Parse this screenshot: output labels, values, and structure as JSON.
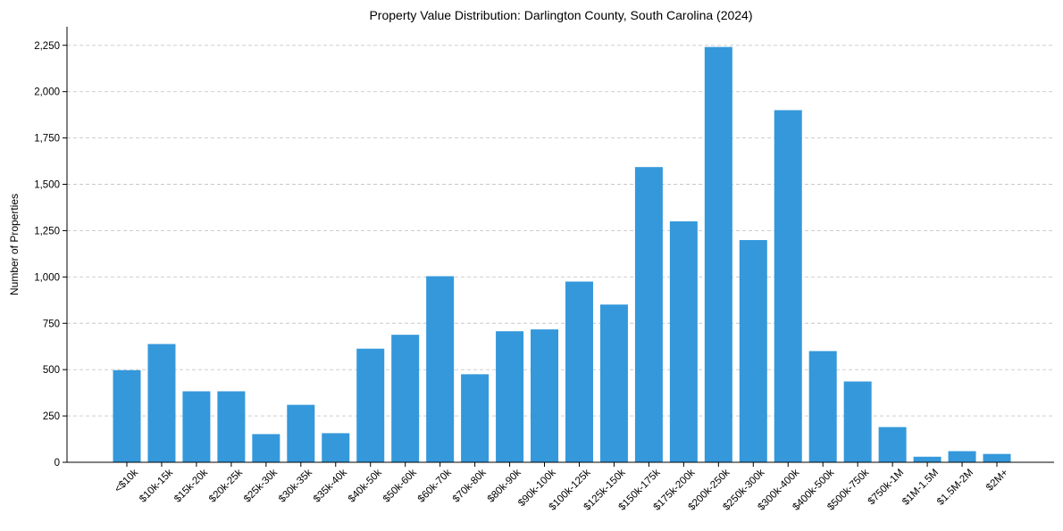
{
  "chart_data": {
    "type": "bar",
    "title": "Property Value Distribution: Darlington County, South Carolina (2024)",
    "xlabel": "",
    "ylabel": "Number of Properties",
    "categories": [
      "<$10k",
      "$10k-15k",
      "$15k-20k",
      "$20k-25k",
      "$25k-30k",
      "$30k-35k",
      "$35k-40k",
      "$40k-50k",
      "$50k-60k",
      "$60k-70k",
      "$70k-80k",
      "$80k-90k",
      "$90k-100k",
      "$100k-125k",
      "$125k-150k",
      "$150k-175k",
      "$175k-200k",
      "$200k-250k",
      "$250k-300k",
      "$300k-400k",
      "$400k-500k",
      "$500k-750k",
      "$750k-1M",
      "$1M-1.5M",
      "$1.5M-2M",
      "$2M+"
    ],
    "values": [
      497,
      638,
      383,
      383,
      152,
      310,
      157,
      613,
      688,
      1004,
      475,
      707,
      717,
      975,
      851,
      1593,
      1300,
      2241,
      1199,
      1900,
      600,
      436,
      190,
      30,
      60,
      45
    ],
    "ylim": [
      0,
      2350
    ],
    "yticks": [
      0,
      250,
      500,
      750,
      1000,
      1250,
      1500,
      1750,
      2000,
      2250
    ],
    "ytick_labels": [
      "0",
      "250",
      "500",
      "750",
      "1,000",
      "1,250",
      "1,500",
      "1,750",
      "2,000",
      "2,250"
    ],
    "grid": "y-dashed",
    "bar_color": "#3498db"
  }
}
